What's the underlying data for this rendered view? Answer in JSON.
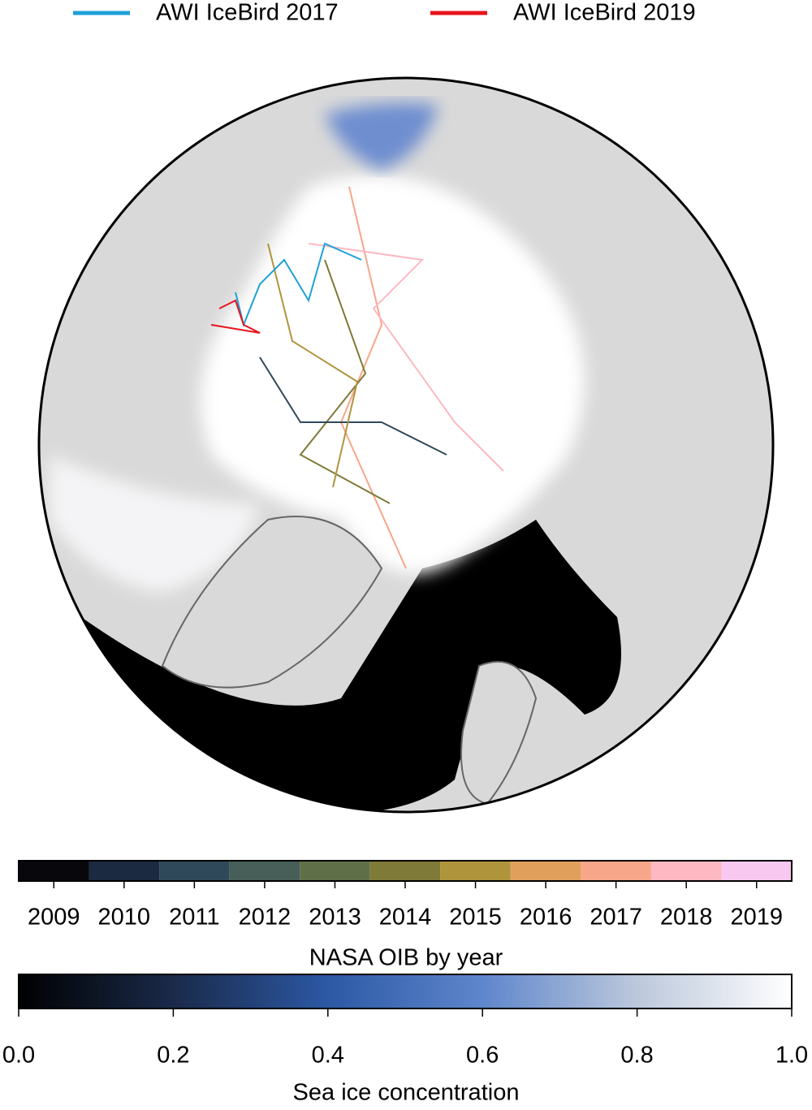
{
  "legend": [
    {
      "label": "AWI IceBird 2017",
      "color": "#1ea0d8"
    },
    {
      "label": "AWI IceBird 2019",
      "color": "#e8141c"
    }
  ],
  "year_colorbar": {
    "label": "NASA OIB by year",
    "years": [
      "2009",
      "2010",
      "2011",
      "2012",
      "2013",
      "2014",
      "2015",
      "2016",
      "2017",
      "2018",
      "2019"
    ],
    "colors": [
      "#08080c",
      "#1b2a40",
      "#30495a",
      "#475f58",
      "#5f7048",
      "#7f7a38",
      "#b0943c",
      "#e0a05c",
      "#f7a68a",
      "#fdb8c2",
      "#f9c8f0"
    ]
  },
  "concentration_colorbar": {
    "label": "Sea ice concentration",
    "range": [
      0,
      1
    ],
    "ticks": [
      {
        "value": 0,
        "label": "0.0"
      },
      {
        "value": 0.2,
        "label": "0.2"
      },
      {
        "value": 0.4,
        "label": "0.4"
      },
      {
        "value": 0.6,
        "label": "0.6"
      },
      {
        "value": 0.8,
        "label": "0.8"
      },
      {
        "value": 1,
        "label": "1.0"
      }
    ]
  }
}
